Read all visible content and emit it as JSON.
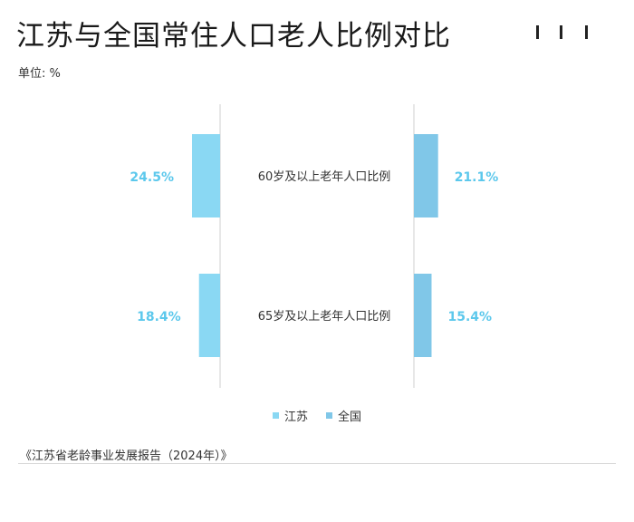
{
  "title": "江苏与全国常住人口老人比例对比",
  "unit_label": "单位: %",
  "source": "《江苏省老龄事业发展报告（2024年）》",
  "colors": {
    "jiangsu": "#8ad8f3",
    "national": "#80c7e8",
    "value_text": "#5cc8ec"
  },
  "legend": [
    {
      "label": "江苏",
      "series": "jiangsu"
    },
    {
      "label": "全国",
      "series": "national"
    }
  ],
  "chart_data": {
    "type": "bar",
    "title": "江苏与全国常住人口老人比例对比",
    "ylabel": "单位: %",
    "categories": [
      "60岁及以上老年人口比例",
      "65岁及以上老年人口比例"
    ],
    "series": [
      {
        "name": "江苏",
        "values": [
          24.5,
          18.4
        ],
        "labels": [
          "24.5%",
          "18.4%"
        ]
      },
      {
        "name": "全国",
        "values": [
          21.1,
          15.4
        ],
        "labels": [
          "21.1%",
          "15.4%"
        ]
      }
    ],
    "ylim": [
      0,
      25
    ],
    "legend_position": "bottom",
    "grid": false
  }
}
